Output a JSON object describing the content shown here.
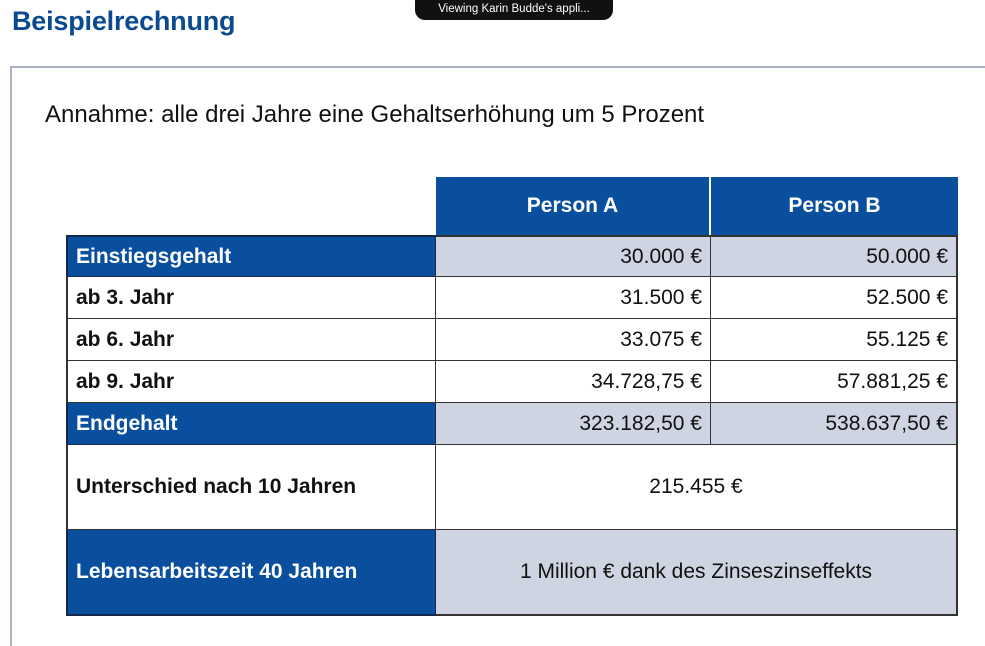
{
  "page": {
    "title": "Beispielrechnung",
    "share_banner": "Viewing Karin Budde's appli...",
    "assumption": "Annahme: alle drei Jahre eine Gehaltserhöhung um 5 Prozent"
  },
  "table": {
    "headers": [
      "Person A",
      "Person B"
    ],
    "rows": [
      {
        "label": "Einstiegsgehalt",
        "a": "30.000 €",
        "b": "50.000 €"
      },
      {
        "label": "ab 3. Jahr",
        "a": "31.500 €",
        "b": "52.500 €"
      },
      {
        "label": "ab 6. Jahr",
        "a": "33.075 €",
        "b": "55.125 €"
      },
      {
        "label": "ab 9. Jahr",
        "a": "34.728,75 €",
        "b": "57.881,25 €"
      },
      {
        "label": "Endgehalt",
        "a": "323.182,50 €",
        "b": "538.637,50 €"
      }
    ],
    "difference": {
      "label": "Unterschied nach 10 Jahren",
      "value": "215.455 €"
    },
    "lifetime": {
      "label": "Lebensarbeitszeit 40 Jahren",
      "value": "1 Million € dank des Zinseszinseffekts"
    }
  },
  "colors": {
    "header_blue": "#0a4f9e",
    "title_blue": "#0b4a8f",
    "shade": "#cfd4e2"
  }
}
